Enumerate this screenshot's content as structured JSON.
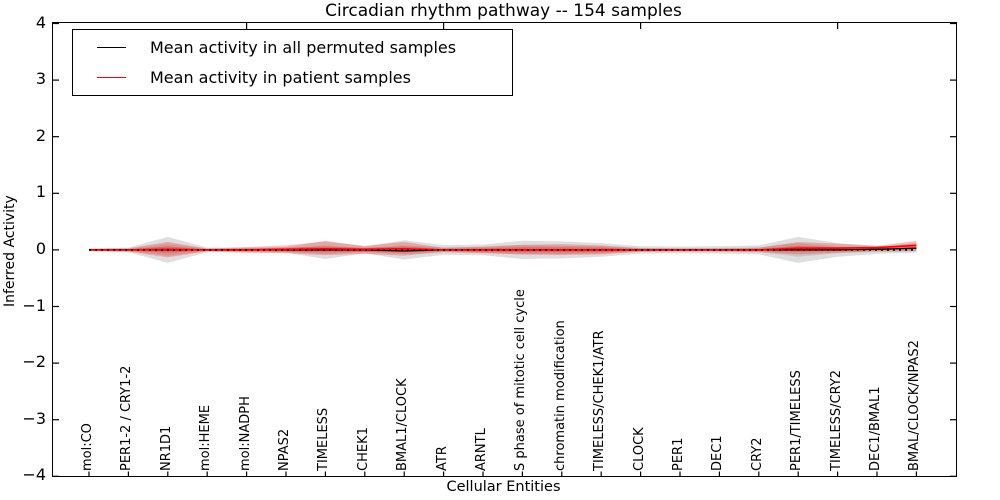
{
  "figure": {
    "title": "Circadian rhythm pathway -- 154 samples"
  },
  "axes": {
    "xlabel": "Cellular Entities",
    "ylabel": "Inferred Activity",
    "ytick_labels": [
      "4",
      "3",
      "2",
      "1",
      "0",
      "−1",
      "−2",
      "−3",
      "−4"
    ],
    "ytick_values": [
      4,
      3,
      2,
      1,
      0,
      -1,
      -2,
      -3,
      -4
    ]
  },
  "legend": {
    "items": [
      {
        "label": "Mean activity in all permuted samples",
        "color": "#000000"
      },
      {
        "label": "Mean activity in patient samples",
        "color": "#ff0000"
      }
    ]
  },
  "chart_data": {
    "type": "line",
    "title": "Circadian rhythm pathway -- 154 samples",
    "xlabel": "Cellular Entities",
    "ylabel": "Inferred Activity",
    "ylim": [
      -4,
      4
    ],
    "n_samples": 154,
    "grid": false,
    "legend_position": "upper left",
    "top_tick_indices": [
      4,
      9,
      14,
      19
    ],
    "categories": [
      "mol:CO",
      "PER1-2 / CRY1-2",
      "NR1D1",
      "mol:HEME",
      "mol:NADPH",
      "NPAS2",
      "TIMELESS",
      "CHEK1",
      "BMAL1/CLOCK",
      "ATR",
      "ARNTL",
      "S phase of mitotic cell cycle",
      "chromatin modification",
      "TIMELESS/CHEK1/ATR",
      "CLOCK",
      "PER1",
      "DEC1",
      "CRY2",
      "PER1/TIMELESS",
      "TIMELESS/CRY2",
      "DEC1/BMAL1",
      "BMAL/CLOCK/NPAS2"
    ],
    "series": [
      {
        "name": "Mean activity in all permuted samples",
        "color": "#000000",
        "style": "solid",
        "values": [
          0,
          0,
          0,
          0,
          0,
          0,
          0,
          0,
          -0.02,
          0,
          0,
          0,
          0,
          0,
          0,
          0,
          0,
          0,
          0,
          0,
          0.01,
          0.03
        ]
      },
      {
        "name": "Mean activity in patient samples",
        "color": "#ff0000",
        "style": "solid",
        "values": [
          0,
          0,
          0.01,
          0,
          0,
          0.01,
          0.02,
          0.01,
          0.02,
          0,
          0,
          0,
          0,
          0,
          0,
          0,
          0,
          0,
          0.03,
          0.03,
          0.04,
          0.08
        ]
      },
      {
        "name": "zero reference",
        "color": "#000000",
        "style": "dotted",
        "values": [
          0,
          0,
          0,
          0,
          0,
          0,
          0,
          0,
          0,
          0,
          0,
          0,
          0,
          0,
          0,
          0,
          0,
          0,
          0,
          0,
          0,
          0
        ]
      }
    ],
    "bands": [
      {
        "name": "permuted samples spread (outer)",
        "color": "rgba(0,0,0,0.13)",
        "upper": [
          0.025,
          0.04,
          0.23,
          0.04,
          0.04,
          0.05,
          0.16,
          0.06,
          0.17,
          0.085,
          0.095,
          0.16,
          0.15,
          0.12,
          0.065,
          0.06,
          0.065,
          0.08,
          0.23,
          0.12,
          0.07,
          0.05
        ],
        "lower": [
          -0.025,
          -0.04,
          -0.23,
          -0.04,
          -0.04,
          -0.05,
          -0.16,
          -0.06,
          -0.17,
          -0.085,
          -0.095,
          -0.16,
          -0.15,
          -0.12,
          -0.065,
          -0.06,
          -0.065,
          -0.08,
          -0.23,
          -0.12,
          -0.07,
          -0.05
        ]
      },
      {
        "name": "permuted samples spread (inner)",
        "color": "rgba(0,0,0,0.10)",
        "upper": [
          0.012,
          0.02,
          0.1,
          0.02,
          0.02,
          0.025,
          0.08,
          0.03,
          0.08,
          0.045,
          0.05,
          0.08,
          0.075,
          0.06,
          0.035,
          0.03,
          0.035,
          0.04,
          0.12,
          0.06,
          0.035,
          0.025
        ],
        "lower": [
          -0.012,
          -0.02,
          -0.1,
          -0.02,
          -0.02,
          -0.025,
          -0.08,
          -0.03,
          -0.08,
          -0.045,
          -0.05,
          -0.08,
          -0.075,
          -0.06,
          -0.035,
          -0.03,
          -0.035,
          -0.04,
          -0.12,
          -0.06,
          -0.035,
          -0.025
        ]
      },
      {
        "name": "patient samples spread (outer)",
        "color": "rgba(255,0,0,0.25)",
        "upper": [
          0.02,
          0.03,
          0.14,
          0.025,
          0.05,
          0.08,
          0.15,
          0.07,
          0.14,
          0.035,
          0.06,
          0.09,
          0.1,
          0.08,
          0.03,
          0.025,
          0.025,
          0.04,
          0.14,
          0.11,
          0.07,
          0.16
        ],
        "lower": [
          -0.02,
          -0.03,
          -0.13,
          -0.025,
          -0.05,
          -0.06,
          -0.09,
          -0.07,
          -0.1,
          -0.035,
          -0.06,
          -0.08,
          -0.09,
          -0.08,
          -0.03,
          -0.025,
          -0.025,
          -0.035,
          -0.08,
          -0.05,
          -0.025,
          -0.02
        ]
      },
      {
        "name": "patient samples spread (inner)",
        "color": "rgba(255,0,0,0.30)",
        "upper": [
          0.01,
          0.015,
          0.06,
          0.012,
          0.025,
          0.04,
          0.06,
          0.035,
          0.06,
          0.018,
          0.03,
          0.045,
          0.045,
          0.04,
          0.015,
          0.012,
          0.012,
          0.02,
          0.07,
          0.05,
          0.045,
          0.12
        ],
        "lower": [
          -0.01,
          -0.015,
          -0.05,
          -0.012,
          -0.025,
          -0.03,
          -0.035,
          -0.035,
          -0.04,
          -0.018,
          -0.03,
          -0.04,
          -0.04,
          -0.04,
          -0.015,
          -0.012,
          -0.012,
          -0.018,
          -0.03,
          -0.02,
          0.0,
          0.035
        ]
      }
    ]
  }
}
